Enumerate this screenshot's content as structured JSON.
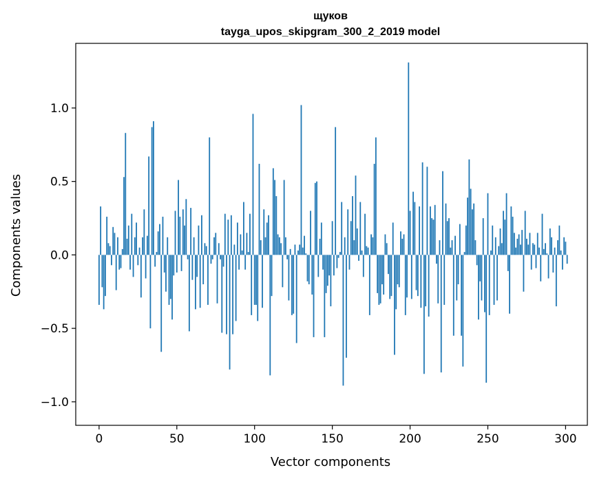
{
  "chart_data": {
    "type": "bar",
    "title": "щуков",
    "subtitle": "tayga_upos_skipgram_300_2_2019 model",
    "xlabel": "Vector components",
    "ylabel": "Components values",
    "xlim": [
      -15,
      314
    ],
    "ylim": [
      -1.16,
      1.44
    ],
    "xticks": [
      0,
      50,
      100,
      150,
      200,
      250,
      300
    ],
    "xtick_labels": [
      "0",
      "50",
      "100",
      "150",
      "200",
      "250",
      "300"
    ],
    "yticks": [
      -1.0,
      -0.5,
      0.0,
      0.5,
      1.0
    ],
    "ytick_labels": [
      "−1.0",
      "−0.5",
      "0.0",
      "0.5",
      "1.0"
    ],
    "bar_color": "#1f77b4",
    "grid": false,
    "values": [
      -0.34,
      0.33,
      -0.22,
      -0.37,
      -0.28,
      0.26,
      0.08,
      0.06,
      -0.07,
      0.19,
      0.15,
      -0.24,
      0.12,
      -0.1,
      -0.09,
      0.04,
      0.53,
      0.83,
      0.11,
      0.2,
      -0.1,
      0.28,
      -0.15,
      0.12,
      0.22,
      -0.07,
      0.05,
      -0.29,
      0.12,
      0.31,
      -0.16,
      0.13,
      0.67,
      -0.5,
      0.87,
      0.91,
      -0.08,
      0.02,
      0.16,
      0.21,
      -0.66,
      0.26,
      -0.12,
      -0.25,
      0.12,
      -0.34,
      -0.3,
      -0.44,
      -0.14,
      0.3,
      -0.12,
      0.51,
      0.26,
      -0.11,
      0.31,
      0.2,
      0.38,
      -0.03,
      -0.52,
      0.32,
      -0.17,
      0.12,
      -0.37,
      -0.15,
      0.2,
      -0.36,
      0.27,
      -0.2,
      0.08,
      0.06,
      -0.34,
      0.8,
      -0.06,
      -0.03,
      0.12,
      0.15,
      -0.33,
      0.08,
      -0.03,
      -0.53,
      -0.08,
      0.28,
      -0.54,
      0.24,
      -0.78,
      0.27,
      -0.54,
      0.07,
      -0.45,
      0.22,
      -0.1,
      0.14,
      0.03,
      0.36,
      -0.1,
      0.15,
      0.02,
      0.28,
      -0.41,
      0.96,
      -0.34,
      -0.34,
      -0.45,
      0.62,
      0.1,
      -0.36,
      0.31,
      0.12,
      0.22,
      0.27,
      -0.82,
      -0.28,
      0.59,
      0.51,
      0.4,
      0.14,
      0.12,
      0.08,
      -0.22,
      0.51,
      0.12,
      -0.03,
      -0.31,
      0.04,
      -0.41,
      -0.4,
      0.07,
      -0.6,
      0.03,
      0.07,
      1.02,
      0.05,
      0.13,
      0.01,
      -0.18,
      -0.2,
      0.3,
      -0.27,
      -0.56,
      0.49,
      0.5,
      -0.15,
      0.11,
      0.22,
      -0.1,
      -0.56,
      -0.26,
      -0.21,
      -0.14,
      -0.35,
      0.23,
      -0.14,
      0.87,
      -0.09,
      -0.02,
      0.02,
      0.36,
      -0.89,
      0.12,
      -0.7,
      0.31,
      -0.1,
      0.23,
      0.4,
      0.1,
      0.54,
      0.18,
      -0.04,
      0.36,
      0.03,
      -0.15,
      0.28,
      0.06,
      0.05,
      -0.41,
      0.14,
      0.12,
      0.62,
      0.8,
      -0.26,
      -0.34,
      -0.33,
      -0.2,
      -0.27,
      0.14,
      0.08,
      -0.13,
      -0.3,
      -0.28,
      0.22,
      -0.68,
      -0.37,
      -0.2,
      -0.22,
      0.16,
      0.11,
      0.14,
      -0.41,
      -0.29,
      1.31,
      0.3,
      -0.3,
      0.43,
      0.36,
      -0.24,
      -0.28,
      0.33,
      -0.36,
      0.63,
      -0.81,
      -0.35,
      0.6,
      -0.42,
      0.33,
      0.25,
      0.24,
      0.34,
      -0.06,
      -0.33,
      0.1,
      -0.8,
      0.57,
      -0.34,
      0.35,
      0.23,
      0.25,
      0.05,
      0.1,
      -0.55,
      0.13,
      -0.31,
      -0.2,
      0.21,
      -0.55,
      -0.76,
      0.02,
      0.2,
      0.39,
      0.65,
      0.45,
      0.31,
      0.35,
      0.1,
      -0.07,
      -0.44,
      -0.18,
      -0.31,
      0.25,
      -0.39,
      -0.87,
      0.42,
      -0.41,
      0.03,
      0.2,
      -0.34,
      0.12,
      -0.31,
      0.06,
      0.18,
      0.08,
      0.3,
      0.24,
      0.42,
      -0.11,
      -0.4,
      0.33,
      0.26,
      0.15,
      0.05,
      0.11,
      0.14,
      0.07,
      0.17,
      -0.25,
      0.3,
      0.11,
      0.07,
      0.15,
      -0.1,
      0.08,
      0.07,
      -0.09,
      0.15,
      0.05,
      -0.18,
      0.28,
      0.04,
      0.08,
      0.01,
      -0.16,
      0.18,
      0.12,
      -0.12,
      0.05,
      -0.35,
      0.1,
      0.2,
      0.03,
      -0.1,
      0.12,
      0.09,
      -0.06
    ]
  }
}
